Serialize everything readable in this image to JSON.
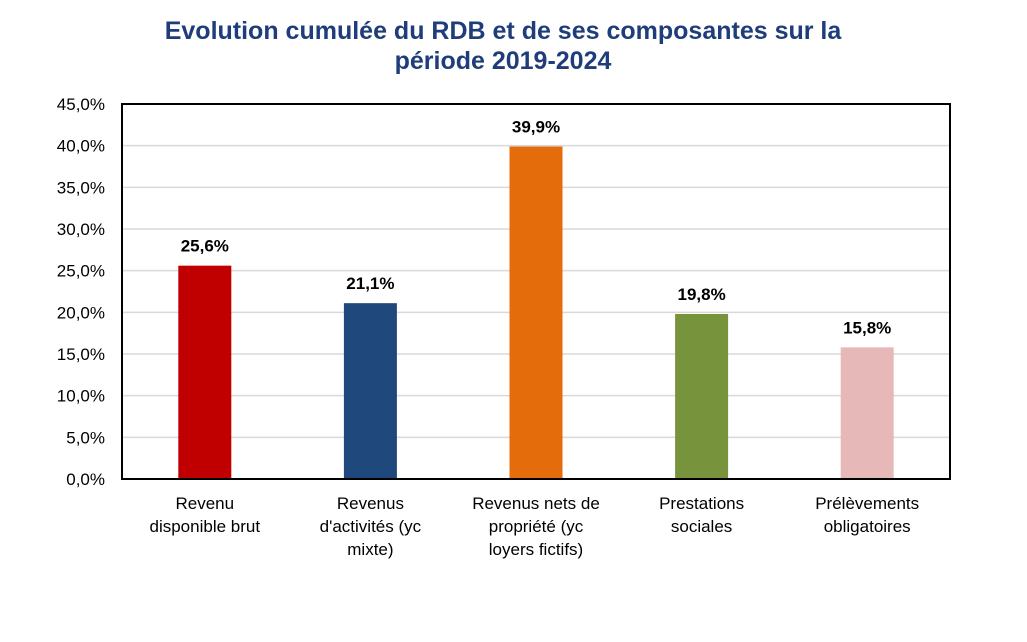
{
  "chart_data": {
    "type": "bar",
    "title": "Evolution cumulée du RDB et de ses composantes sur la période 2019-2024",
    "title_lines": [
      "Evolution cumulée du RDB et de ses composantes sur la",
      "période 2019-2024"
    ],
    "categories": [
      "Revenu disponible brut",
      "Revenus d'activités (yc mixte)",
      "Revenus nets de propriété (yc loyers fictifs)",
      "Prestations sociales",
      "Prélèvements obligatoires"
    ],
    "category_lines": [
      [
        "Revenu",
        "disponible brut"
      ],
      [
        "Revenus",
        "d'activités (yc",
        "mixte)"
      ],
      [
        "Revenus nets de",
        "propriété (yc",
        "loyers fictifs)"
      ],
      [
        "Prestations",
        "sociales"
      ],
      [
        "Prélèvements",
        "obligatoires"
      ]
    ],
    "values": [
      25.6,
      21.1,
      39.9,
      19.8,
      15.8
    ],
    "data_labels": [
      "25,6%",
      "21,1%",
      "39,9%",
      "19,8%",
      "15,8%"
    ],
    "colors": [
      "#c00000",
      "#1f497d",
      "#e46c0a",
      "#77933c",
      "#e6b9b8"
    ],
    "ylim": [
      0,
      45
    ],
    "yticks": [
      0,
      5,
      10,
      15,
      20,
      25,
      30,
      35,
      40,
      45
    ],
    "ytick_labels": [
      "0,0%",
      "5,0%",
      "10,0%",
      "15,0%",
      "20,0%",
      "25,0%",
      "30,0%",
      "35,0%",
      "40,0%",
      "45,0%"
    ],
    "grid": true,
    "legend": "none",
    "xlabel": "",
    "ylabel": ""
  }
}
